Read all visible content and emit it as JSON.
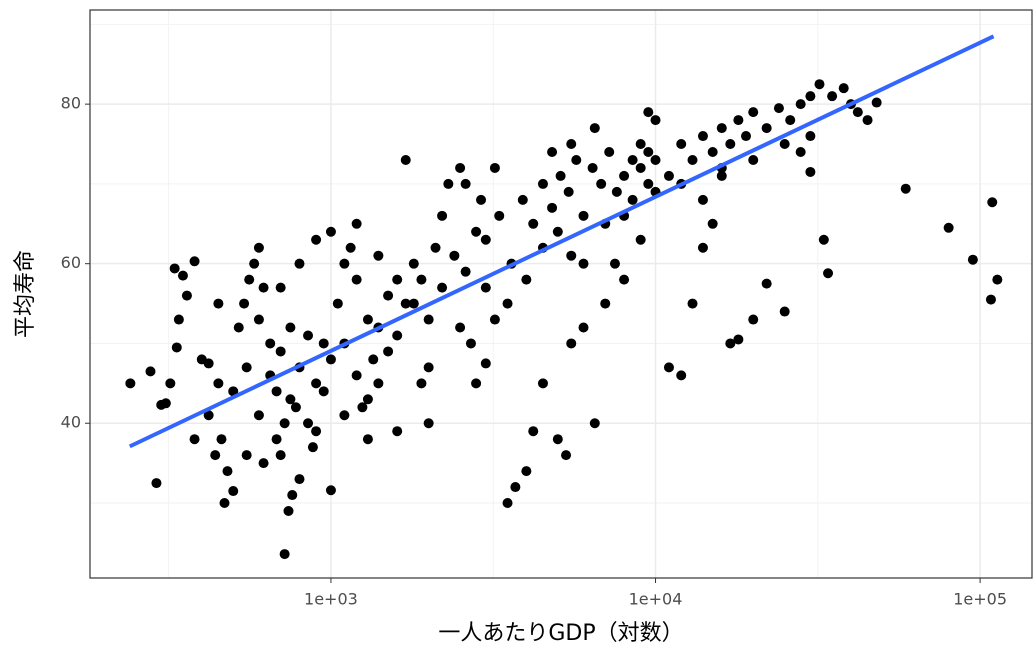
{
  "chart_data": {
    "type": "scatter",
    "xlabel": "一人あたりGDP（対数）",
    "ylabel": "平均寿命",
    "xlog": true,
    "xlim": [
      181,
      144500
    ],
    "ylim": [
      20.6,
      91.8
    ],
    "xticks": [
      {
        "value": 1000,
        "label": "1e+03"
      },
      {
        "value": 10000,
        "label": "1e+04"
      },
      {
        "value": 100000,
        "label": "1e+05"
      }
    ],
    "xminor": [
      316.2,
      3162,
      31623
    ],
    "yticks": [
      40,
      60,
      80
    ],
    "yminor": [
      30,
      50,
      70,
      90
    ],
    "grid": true,
    "series": [
      {
        "color": "#000000",
        "x": [
          241,
          278,
          300,
          310,
          290,
          330,
          350,
          380,
          360,
          340,
          335,
          320,
          400,
          420,
          450,
          460,
          470,
          480,
          500,
          520,
          540,
          560,
          580,
          600,
          620,
          650,
          680,
          700,
          720,
          740,
          760,
          800,
          850,
          900,
          950,
          1000,
          1050,
          1100,
          1150,
          1200,
          1250,
          1300,
          1350,
          1400,
          1500,
          1600,
          1700,
          1800,
          1900,
          2000,
          2100,
          2200,
          2300,
          2500,
          2700,
          2800,
          3000,
          3200,
          3500,
          3700,
          4000,
          4200,
          4500,
          5000,
          5300,
          5500,
          6000,
          6500,
          7000,
          7500,
          8000,
          8500,
          9000,
          9500,
          10000,
          11000,
          12000,
          13000,
          14000,
          15000,
          16000,
          17000,
          18000,
          20000,
          22000,
          25000,
          28000,
          30000,
          33000,
          34000,
          40000,
          45000,
          48000,
          59000,
          80000,
          95000,
          108000,
          109000,
          113000,
          500,
          550,
          600,
          650,
          700,
          750,
          800,
          850,
          900,
          950,
          1000,
          1100,
          1200,
          1300,
          1400,
          1500,
          1600,
          1700,
          1800,
          1900,
          2000,
          2200,
          2400,
          2600,
          2800,
          3000,
          3300,
          3600,
          3900,
          4200,
          4500,
          4800,
          5100,
          5400,
          5700,
          6000,
          6400,
          6800,
          7200,
          7600,
          8000,
          8500,
          9000,
          9500,
          10000,
          11000,
          12000,
          13000,
          14000,
          15000,
          16000,
          17000,
          18000,
          19000,
          20000,
          22000,
          24000,
          26000,
          28000,
          30000,
          32000,
          35000,
          38000,
          42000,
          550,
          620,
          680,
          720,
          780,
          880,
          1100,
          1300,
          1600,
          2000,
          2500,
          3000,
          3500,
          4000,
          4500,
          5000,
          5500,
          6000,
          7000,
          8000,
          9000,
          10000,
          12000,
          14000,
          16000,
          20000,
          25000,
          30000,
          380,
          420,
          440,
          900,
          1000,
          1200,
          1400,
          700,
          800,
          2600,
          2900,
          3200,
          4800,
          5500,
          6500,
          9500,
          450,
          600,
          750
        ],
        "y": [
          45,
          46.5,
          42.3,
          42.5,
          32.5,
          59.4,
          58.5,
          60.3,
          56,
          53,
          49.5,
          45,
          48,
          47.5,
          45,
          38,
          30,
          34,
          31.5,
          52,
          55,
          58,
          60,
          62,
          57,
          50,
          44,
          36,
          23.6,
          29,
          31,
          33,
          40,
          45,
          50,
          31.6,
          55,
          60,
          62,
          65,
          42,
          38,
          48,
          52,
          56,
          58,
          73,
          55,
          45,
          40,
          62,
          66,
          70,
          72,
          50,
          45,
          47.5,
          53,
          30,
          32,
          34,
          39,
          45,
          38,
          36,
          50,
          52,
          40,
          55,
          60,
          58,
          73,
          75,
          70,
          78,
          47,
          46,
          55,
          62,
          65,
          72,
          50,
          50.5,
          53,
          57.5,
          54,
          74,
          71.5,
          63,
          58.8,
          80,
          78,
          80.2,
          69.4,
          64.5,
          60.5,
          55.5,
          67.7,
          58,
          44,
          47,
          41,
          46,
          49,
          43,
          47,
          51,
          39,
          44,
          48,
          50,
          46,
          53,
          45,
          49,
          51,
          55,
          60,
          58,
          53,
          57,
          61,
          59,
          64,
          63,
          66,
          60,
          68,
          65,
          70,
          67,
          71,
          69,
          73,
          66,
          72,
          70,
          74,
          69,
          71,
          68,
          72,
          74,
          73,
          71,
          75,
          73,
          76,
          74,
          77,
          75,
          78,
          76,
          79,
          77,
          79.5,
          78,
          80,
          81,
          82.5,
          81,
          82,
          79,
          36,
          35,
          38,
          40,
          42,
          37,
          41,
          43,
          39,
          47,
          52,
          57,
          55,
          58,
          62,
          64,
          61,
          60,
          65,
          66,
          63,
          69,
          70,
          68,
          71,
          73,
          75,
          76,
          38,
          41,
          36,
          63,
          64,
          58,
          61,
          57,
          60,
          70,
          68,
          72,
          74,
          75,
          77,
          79,
          55,
          53,
          52
        ]
      }
    ],
    "fit": {
      "color": "#3366ff",
      "x": [
        240,
        110000
      ],
      "y": [
        37.1,
        88.5
      ]
    }
  }
}
